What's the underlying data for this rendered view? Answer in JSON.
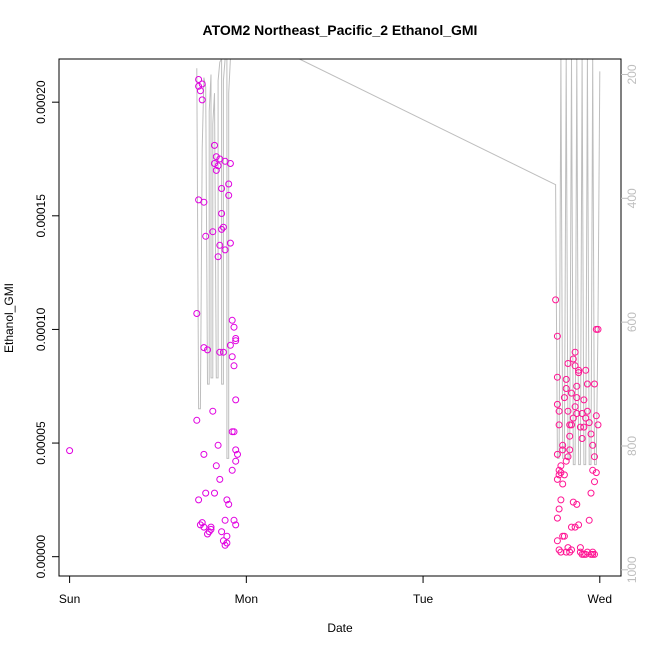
{
  "chart_data": {
    "type": "scatter",
    "title": "ATOM2 Northeast_Pacific_2 Ethanol_GMI",
    "xlabel": "Date",
    "ylabel": "Ethanol_GMI",
    "x_ticks": [
      {
        "label": "Sun",
        "day": 0
      },
      {
        "label": "Mon",
        "day": 1
      },
      {
        "label": "Tue",
        "day": 2
      },
      {
        "label": "Wed",
        "day": 3
      }
    ],
    "xlim_days": [
      -0.06,
      3.12
    ],
    "ylim": [
      -8.5e-06,
      0.000219
    ],
    "y_ticks": [
      0.0,
      5e-05,
      0.0001,
      0.00015,
      0.0002
    ],
    "y_tick_labels": [
      "0.00000",
      "0.00005",
      "0.00010",
      "0.00015",
      "0.00020"
    ],
    "y2_ticks": [
      200,
      400,
      600,
      800,
      1000
    ],
    "y2_lim": [
      1010,
      175
    ],
    "colors": {
      "points_magenta": "#e000e0",
      "points_pink": "#ff1493",
      "secondary_line": "#bebebe"
    },
    "series": [
      {
        "color": "#e000e0",
        "points": [
          [
            0.0,
            4.67e-05
          ],
          [
            0.73,
            0.00021
          ],
          [
            0.73,
            0.000207
          ],
          [
            0.74,
            0.000205
          ],
          [
            0.73,
            0.000157
          ],
          [
            0.72,
            0.000107
          ],
          [
            0.72,
            6e-05
          ],
          [
            0.73,
            2.5e-05
          ],
          [
            0.75,
            0.000208
          ],
          [
            0.75,
            0.000201
          ],
          [
            0.76,
            0.000156
          ],
          [
            0.77,
            0.000141
          ],
          [
            0.76,
            9.2e-05
          ],
          [
            0.78,
            9.1e-05
          ],
          [
            0.76,
            4.5e-05
          ],
          [
            0.77,
            2.8e-05
          ],
          [
            0.74,
            1.4e-05
          ],
          [
            0.75,
            1.5e-05
          ],
          [
            0.76,
            1.3e-05
          ],
          [
            0.78,
            1e-05
          ],
          [
            0.79,
            1.1e-05
          ],
          [
            0.8,
            1.2e-05
          ],
          [
            0.81,
            6.4e-05
          ],
          [
            0.81,
            0.000143
          ],
          [
            0.82,
            0.000181
          ],
          [
            0.83,
            0.000176
          ],
          [
            0.82,
            0.000173
          ],
          [
            0.84,
            0.000172
          ],
          [
            0.83,
            0.00017
          ],
          [
            0.85,
            0.000175
          ],
          [
            0.84,
            0.000132
          ],
          [
            0.85,
            0.000137
          ],
          [
            0.86,
            0.000162
          ],
          [
            0.86,
            0.000151
          ],
          [
            0.86,
            0.000144
          ],
          [
            0.87,
            0.000145
          ],
          [
            0.88,
            0.000135
          ],
          [
            0.88,
            0.000174
          ],
          [
            0.87,
            9e-05
          ],
          [
            0.85,
            9e-05
          ],
          [
            0.84,
            4.9e-05
          ],
          [
            0.83,
            4e-05
          ],
          [
            0.85,
            3.4e-05
          ],
          [
            0.82,
            2.8e-05
          ],
          [
            0.8,
            1.3e-05
          ],
          [
            0.86,
            1.1e-05
          ],
          [
            0.87,
            7e-06
          ],
          [
            0.88,
            5e-06
          ],
          [
            0.89,
            6e-06
          ],
          [
            0.89,
            9e-06
          ],
          [
            0.9,
            2.3e-05
          ],
          [
            0.89,
            2.5e-05
          ],
          [
            0.88,
            1.6e-05
          ],
          [
            0.9,
            0.000164
          ],
          [
            0.9,
            0.000159
          ],
          [
            0.91,
            0.000173
          ],
          [
            0.91,
            0.000138
          ],
          [
            0.91,
            9.3e-05
          ],
          [
            0.92,
            8.8e-05
          ],
          [
            0.92,
            0.000104
          ],
          [
            0.93,
            0.000101
          ],
          [
            0.94,
            9.6e-05
          ],
          [
            0.94,
            9.5e-05
          ],
          [
            0.93,
            8.4e-05
          ],
          [
            0.94,
            6.9e-05
          ],
          [
            0.92,
            5.5e-05
          ],
          [
            0.93,
            5.5e-05
          ],
          [
            0.94,
            4.7e-05
          ],
          [
            0.95,
            4.5e-05
          ],
          [
            0.94,
            4.2e-05
          ],
          [
            0.93,
            1.6e-05
          ],
          [
            0.94,
            1.4e-05
          ],
          [
            0.92,
            3.8e-05
          ]
        ]
      },
      {
        "color": "#ff1493",
        "points": [
          [
            2.75,
            0.000113
          ],
          [
            2.76,
            9.7e-05
          ],
          [
            2.76,
            7.9e-05
          ],
          [
            2.76,
            6.7e-05
          ],
          [
            2.77,
            6.4e-05
          ],
          [
            2.77,
            5.8e-05
          ],
          [
            2.76,
            4.5e-05
          ],
          [
            2.76,
            3.4e-05
          ],
          [
            2.77,
            3.8e-05
          ],
          [
            2.78,
            3.7e-05
          ],
          [
            2.77,
            3.6e-05
          ],
          [
            2.78,
            4e-05
          ],
          [
            2.79,
            4.7e-05
          ],
          [
            2.79,
            4.9e-05
          ],
          [
            2.8,
            7e-05
          ],
          [
            2.81,
            7.8e-05
          ],
          [
            2.81,
            7.4e-05
          ],
          [
            2.82,
            8.5e-05
          ],
          [
            2.82,
            6.4e-05
          ],
          [
            2.83,
            5.8e-05
          ],
          [
            2.83,
            5.3e-05
          ],
          [
            2.84,
            7.2e-05
          ],
          [
            2.85,
            8.7e-05
          ],
          [
            2.86,
            9e-05
          ],
          [
            2.86,
            8.4e-05
          ],
          [
            2.87,
            7.5e-05
          ],
          [
            2.88,
            8.2e-05
          ],
          [
            2.88,
            8.1e-05
          ],
          [
            2.87,
            7e-05
          ],
          [
            2.87,
            6.3e-05
          ],
          [
            2.86,
            6.6e-05
          ],
          [
            2.85,
            6.1e-05
          ],
          [
            2.84,
            5.8e-05
          ],
          [
            2.83,
            4.7e-05
          ],
          [
            2.82,
            4.4e-05
          ],
          [
            2.81,
            4.2e-05
          ],
          [
            2.8,
            3.6e-05
          ],
          [
            2.79,
            3.2e-05
          ],
          [
            2.78,
            2.5e-05
          ],
          [
            2.77,
            2.1e-05
          ],
          [
            2.76,
            1.7e-05
          ],
          [
            2.76,
            7e-06
          ],
          [
            2.77,
            3e-06
          ],
          [
            2.78,
            2e-06
          ],
          [
            2.79,
            9e-06
          ],
          [
            2.8,
            9e-06
          ],
          [
            2.81,
            2e-06
          ],
          [
            2.82,
            4e-06
          ],
          [
            2.83,
            2e-06
          ],
          [
            2.84,
            3e-06
          ],
          [
            2.84,
            1.3e-05
          ],
          [
            2.85,
            2.4e-05
          ],
          [
            2.86,
            1.3e-05
          ],
          [
            2.87,
            2.3e-05
          ],
          [
            2.88,
            1.4e-05
          ],
          [
            2.89,
            4e-06
          ],
          [
            2.89,
            2e-06
          ],
          [
            2.9,
            1e-06
          ],
          [
            2.91,
            1e-06
          ],
          [
            2.92,
            1e-06
          ],
          [
            2.93,
            2e-06
          ],
          [
            2.94,
            1.6e-05
          ],
          [
            2.95,
            2.8e-05
          ],
          [
            2.96,
            3.8e-05
          ],
          [
            2.97,
            4.4e-05
          ],
          [
            2.97,
            3.3e-05
          ],
          [
            2.96,
            4.9e-05
          ],
          [
            2.95,
            5.4e-05
          ],
          [
            2.94,
            5.9e-05
          ],
          [
            2.93,
            6.4e-05
          ],
          [
            2.92,
            6.1e-05
          ],
          [
            2.91,
            5.7e-05
          ],
          [
            2.9,
            5.2e-05
          ],
          [
            2.89,
            5.7e-05
          ],
          [
            2.9,
            6.3e-05
          ],
          [
            2.91,
            6.9e-05
          ],
          [
            2.92,
            8.2e-05
          ],
          [
            2.93,
            7.6e-05
          ],
          [
            2.97,
            7.6e-05
          ],
          [
            2.98,
            0.0001
          ],
          [
            2.99,
            0.0001
          ],
          [
            2.98,
            6.2e-05
          ],
          [
            2.99,
            5.8e-05
          ],
          [
            2.98,
            3.7e-05
          ],
          [
            2.97,
            1e-06
          ],
          [
            2.96,
            1e-06
          ],
          [
            2.95,
            1e-06
          ],
          [
            2.96,
            2e-06
          ]
        ]
      }
    ],
    "secondary_line": [
      [
        0.72,
        190
      ],
      [
        0.73,
        740
      ],
      [
        0.74,
        740
      ],
      [
        0.75,
        320
      ],
      [
        0.76,
        205
      ],
      [
        0.77,
        220
      ],
      [
        0.78,
        700
      ],
      [
        0.79,
        700
      ],
      [
        0.79,
        260
      ],
      [
        0.8,
        200
      ],
      [
        0.8,
        690
      ],
      [
        0.81,
        690
      ],
      [
        0.81,
        280
      ],
      [
        0.82,
        230
      ],
      [
        0.83,
        690
      ],
      [
        0.84,
        690
      ],
      [
        0.84,
        210
      ],
      [
        0.85,
        180
      ],
      [
        0.86,
        175
      ],
      [
        0.86,
        700
      ],
      [
        0.87,
        700
      ],
      [
        0.87,
        210
      ],
      [
        0.88,
        175
      ],
      [
        0.89,
        175
      ],
      [
        0.89,
        820
      ],
      [
        0.9,
        820
      ],
      [
        0.9,
        230
      ],
      [
        0.91,
        175
      ],
      [
        0.93,
        175
      ],
      [
        1.3,
        175
      ],
      [
        2.75,
        378
      ],
      [
        2.76,
        820
      ],
      [
        2.77,
        820
      ],
      [
        2.78,
        175
      ],
      [
        2.79,
        820
      ],
      [
        2.8,
        820
      ],
      [
        2.81,
        175
      ],
      [
        2.82,
        820
      ],
      [
        2.83,
        820
      ],
      [
        2.84,
        175
      ],
      [
        2.85,
        830
      ],
      [
        2.86,
        830
      ],
      [
        2.87,
        175
      ],
      [
        2.88,
        830
      ],
      [
        2.89,
        830
      ],
      [
        2.9,
        175
      ],
      [
        2.91,
        830
      ],
      [
        2.92,
        830
      ],
      [
        2.93,
        175
      ],
      [
        2.94,
        830
      ],
      [
        2.95,
        830
      ],
      [
        2.96,
        175
      ],
      [
        2.97,
        830
      ],
      [
        2.98,
        830
      ],
      [
        2.99,
        600
      ],
      [
        3.0,
        195
      ]
    ]
  }
}
